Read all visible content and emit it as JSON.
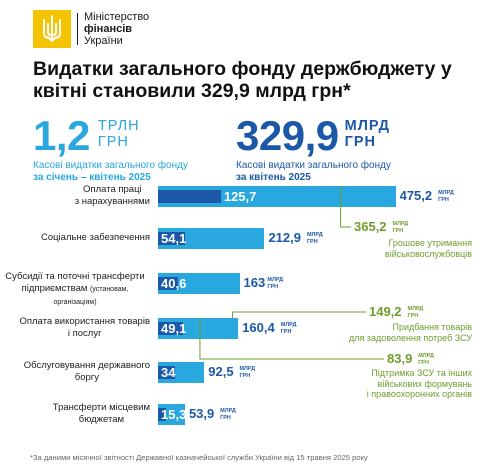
{
  "header": {
    "org_line1": "Міністерство",
    "org_line2": "фінансів",
    "org_line3": "України",
    "logo_icon": "trident-icon"
  },
  "title": "Видатки загального фонду держбюджету у квітні становили 329,9 млрд грн*",
  "headline_left": {
    "value": "1,2",
    "unit_line1": "ТРЛН",
    "unit_line2": "ГРН",
    "caption": "Касові видатки загального фонду",
    "caption_bold": "за січень – квітень 2025"
  },
  "headline_right": {
    "value": "329,9",
    "unit_line1": "МЛРД",
    "unit_line2": "ГРН",
    "caption": "Касові видатки загального фонду",
    "caption_bold": "за квітень 2025"
  },
  "colors": {
    "jan_apr": "#29a8e0",
    "april": "#1c58a8",
    "military": "#6f9d2d",
    "logo": "#f5c400"
  },
  "chart_data": {
    "type": "bar",
    "orientation": "horizontal",
    "unit": "МЛРД ГРН",
    "categories": [
      {
        "line1": "Оплата праці",
        "line2": "з нарахуваннями",
        "note": ""
      },
      {
        "line1": "Соціальне забезпечення",
        "line2": "",
        "note": ""
      },
      {
        "line1": "Субсидії та поточні трансферти",
        "line2": "підприємствам",
        "note": "(установам, організаціям)"
      },
      {
        "line1": "Оплата використання товарів",
        "line2": "і послуг",
        "note": ""
      },
      {
        "line1": "Обслуговування державного",
        "line2": "боргу",
        "note": ""
      },
      {
        "line1": "Трансферти місцевим",
        "line2": "бюджетам",
        "note": ""
      }
    ],
    "series": [
      {
        "key": "jan_apr",
        "values": [
          475.2,
          212.9,
          163,
          160.4,
          92.5,
          53.9
        ],
        "labels": [
          "475,2",
          "212,9",
          "163",
          "160,4",
          "92,5",
          "53,9"
        ]
      },
      {
        "key": "april",
        "values": [
          125.7,
          54.1,
          40.6,
          49.1,
          34,
          15.3
        ],
        "labels": [
          "125,7",
          "54,1",
          "40,6",
          "49,1",
          "34",
          "15,3"
        ]
      }
    ],
    "unit_line1": "МЛРД",
    "unit_line2": "ГРН",
    "annotations": [
      {
        "category_index": 0,
        "value": 365.2,
        "label": "365,2",
        "caption_line1": "Грошове утримання",
        "caption_line2": "військовослужбовців",
        "caption_line3": ""
      },
      {
        "category_index": 3,
        "value": 149.2,
        "label": "149,2",
        "caption_line1": "Придбання товарів",
        "caption_line2": "для задоволення потреб ЗСУ",
        "caption_line3": ""
      },
      {
        "category_index": 3,
        "value": 83.9,
        "label": "83,9",
        "caption_line1": "Підтримка ЗСУ та інших",
        "caption_line2": "військових формувань",
        "caption_line3": "і правоохоронних органів"
      }
    ]
  },
  "footnote": "*За даними місячної звітності Державної казначейської служби України від 15 травня 2025 року"
}
